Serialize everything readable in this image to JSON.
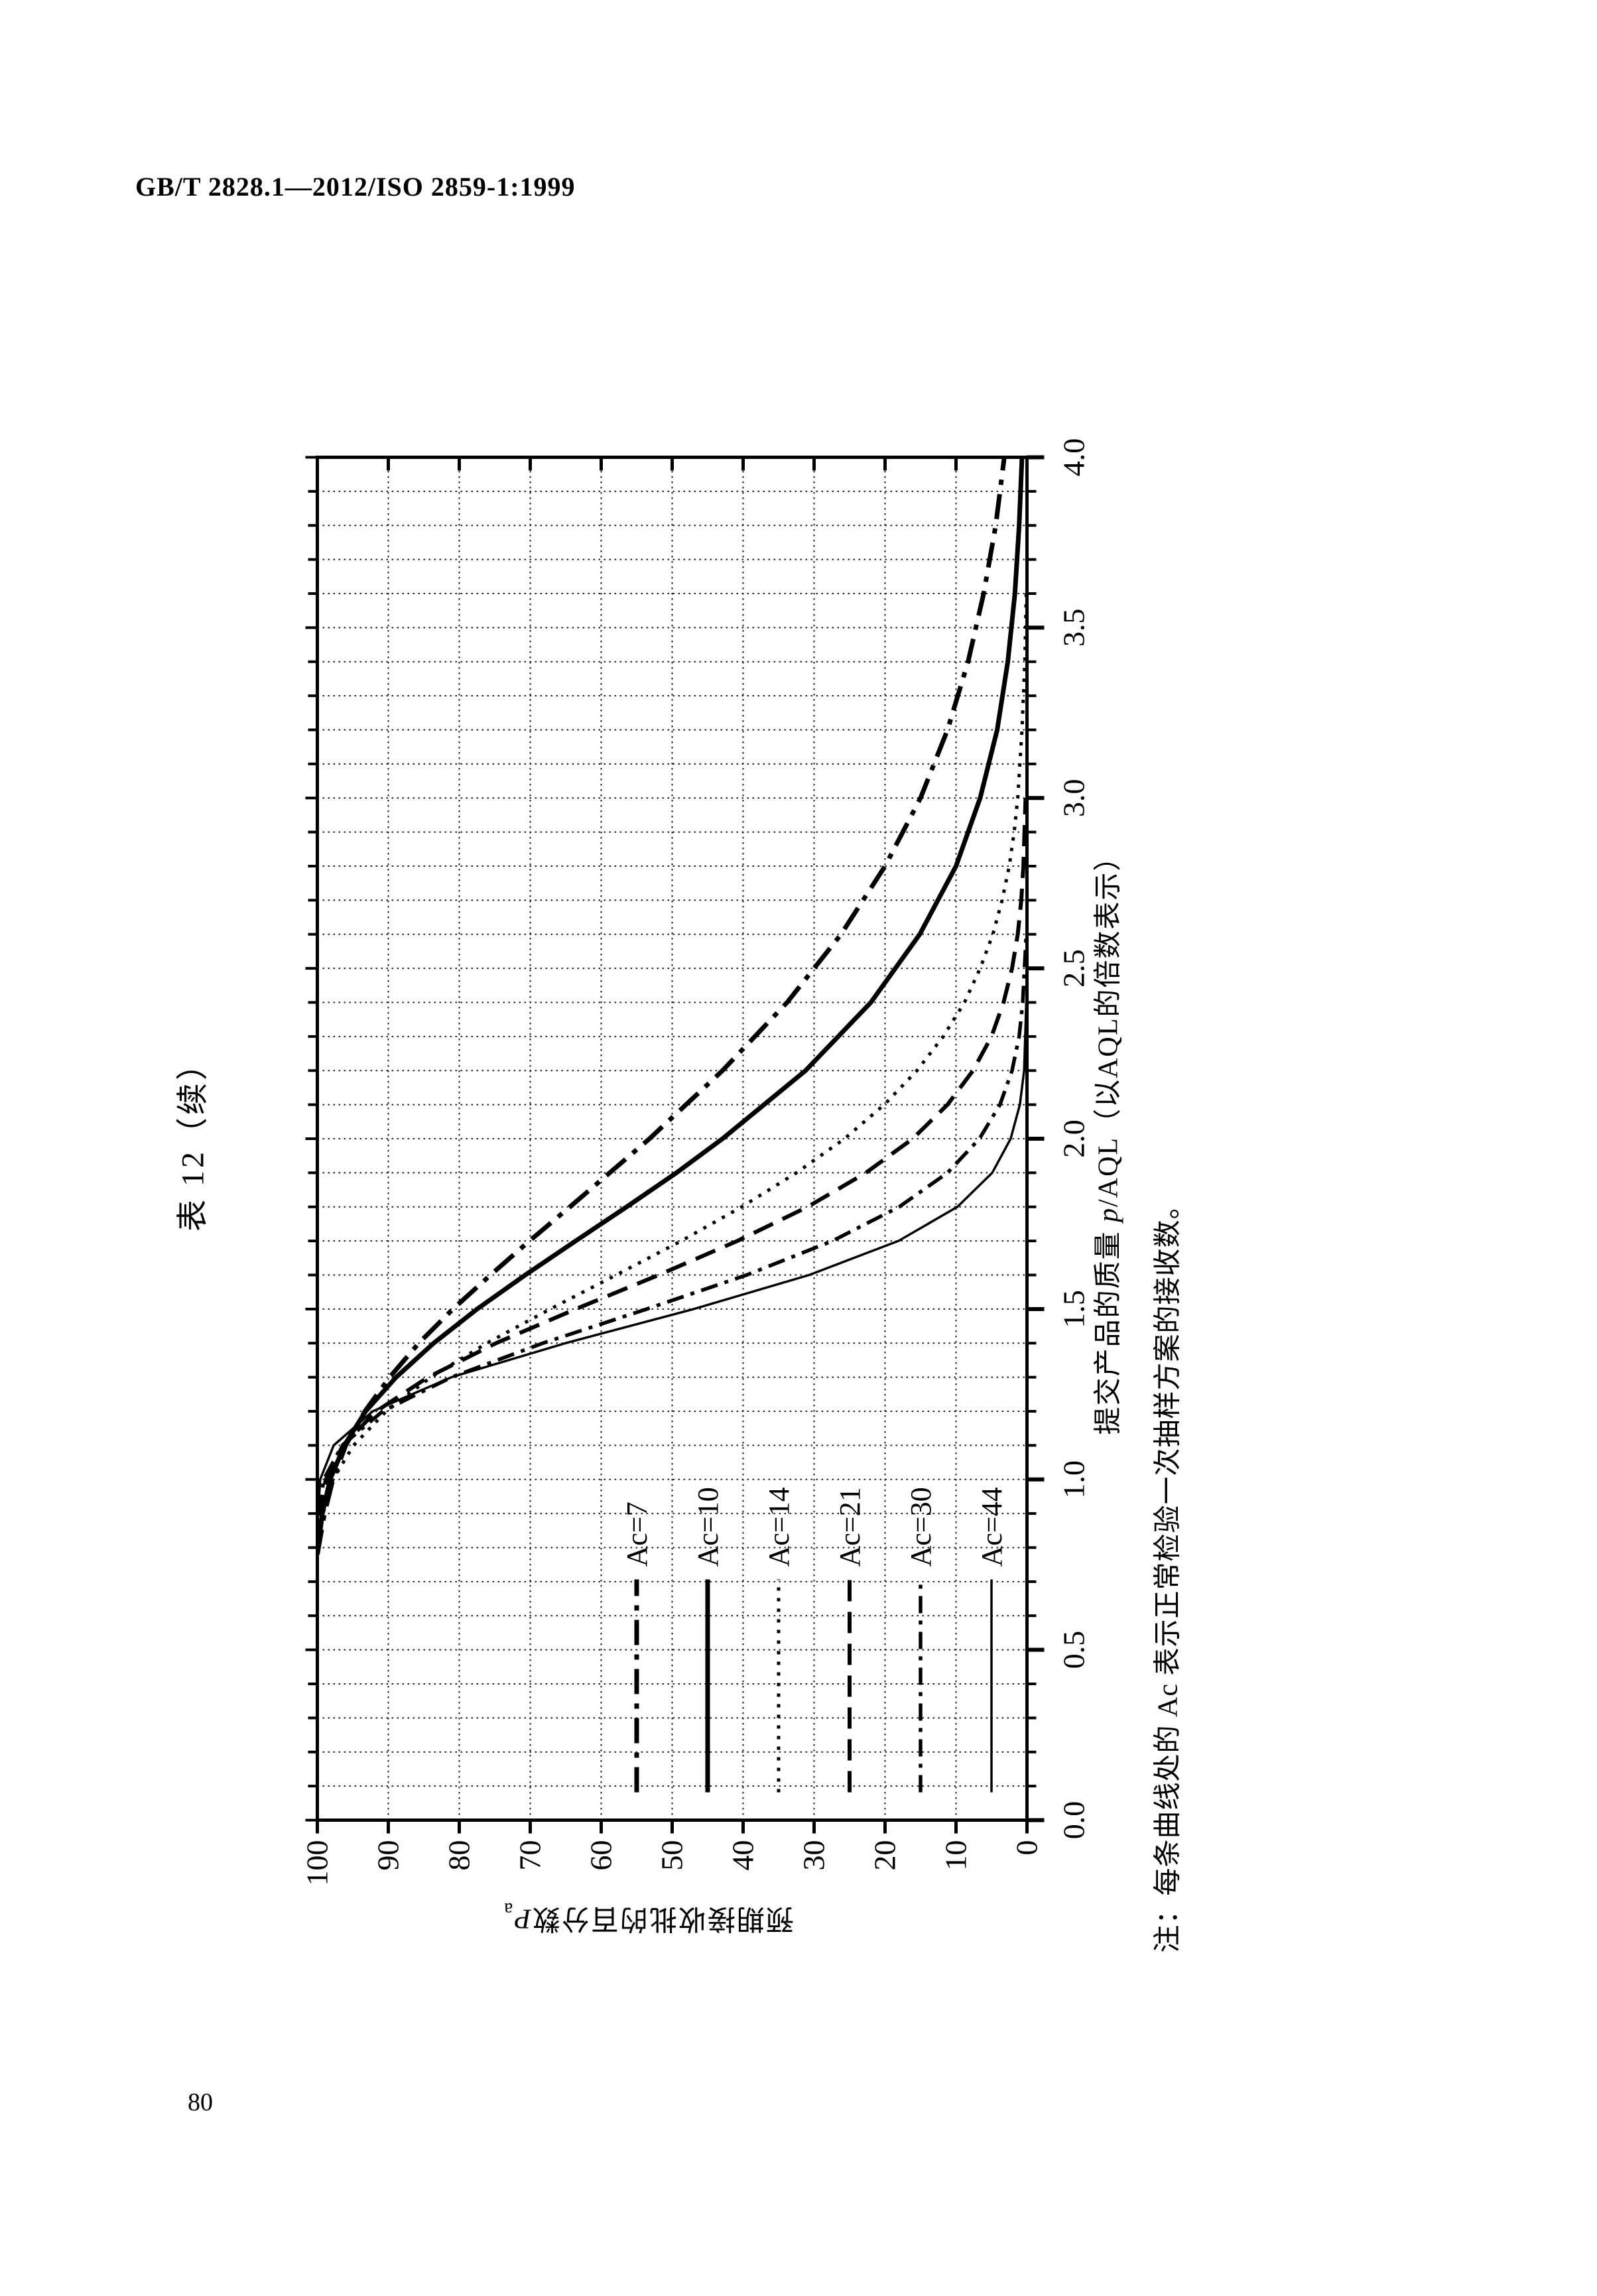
{
  "page": {
    "header": "GB/T 2828.1—2012/ISO 2859-1:1999",
    "page_number": "80"
  },
  "chart_data": {
    "type": "line",
    "title": "表 12（续）",
    "xlabel_parts": {
      "prefix": "提交产品的质量 ",
      "italic": "p",
      "suffix": "/AQL（以AQL的倍数表示）"
    },
    "ylabel_parts": {
      "prefix": "预期接收批的百分数",
      "italic": "P",
      "subscript": "a"
    },
    "xlim": [
      0,
      4
    ],
    "ylim": [
      0,
      100
    ],
    "x_ticks": [
      "0.0",
      "0.5",
      "1.0",
      "1.5",
      "2.0",
      "2.5",
      "3.0",
      "3.5",
      "4.0"
    ],
    "y_ticks": [
      "100",
      "90",
      "80",
      "70",
      "60",
      "50",
      "40",
      "30",
      "20",
      "10",
      "0"
    ],
    "grid": {
      "x_step": 0.1,
      "y_step": 10,
      "style": "dotted",
      "on": true
    },
    "legend_position": "inside-lower-left",
    "orientation": "page-rotated-90deg-ccw",
    "note": "注：每条曲线处的 Ac 表示正常检验一次抽样方案的接收数。",
    "series": [
      {
        "name": "Ac=7",
        "line_style": "dash-dot-bold",
        "points": [
          [
            0.78,
            100
          ],
          [
            0.9,
            99.0
          ],
          [
            1.0,
            97.8
          ],
          [
            1.1,
            96.0
          ],
          [
            1.2,
            93.3
          ],
          [
            1.3,
            89.8
          ],
          [
            1.4,
            85.7
          ],
          [
            1.5,
            80.9
          ],
          [
            1.6,
            75.6
          ],
          [
            1.7,
            70.1
          ],
          [
            1.8,
            64.4
          ],
          [
            1.9,
            58.8
          ],
          [
            2.0,
            53.2
          ],
          [
            2.2,
            42.9
          ],
          [
            2.4,
            33.8
          ],
          [
            2.6,
            26.2
          ],
          [
            2.8,
            20.0
          ],
          [
            3.0,
            15.0
          ],
          [
            3.2,
            11.2
          ],
          [
            3.4,
            8.3
          ],
          [
            3.6,
            6.1
          ],
          [
            3.8,
            4.4
          ],
          [
            4.0,
            3.2
          ]
        ]
      },
      {
        "name": "Ac=10",
        "line_style": "solid-bold",
        "points": [
          [
            0.78,
            100
          ],
          [
            0.9,
            99.3
          ],
          [
            1.0,
            98.2
          ],
          [
            1.1,
            96.2
          ],
          [
            1.2,
            93.2
          ],
          [
            1.3,
            88.9
          ],
          [
            1.4,
            83.6
          ],
          [
            1.5,
            77.5
          ],
          [
            1.6,
            70.7
          ],
          [
            1.7,
            63.6
          ],
          [
            1.8,
            56.4
          ],
          [
            1.9,
            49.4
          ],
          [
            2.0,
            42.9
          ],
          [
            2.2,
            31.2
          ],
          [
            2.4,
            22.0
          ],
          [
            2.6,
            15.1
          ],
          [
            2.8,
            10.0
          ],
          [
            3.0,
            6.6
          ],
          [
            3.2,
            4.2
          ],
          [
            3.4,
            2.7
          ],
          [
            3.6,
            1.7
          ],
          [
            3.8,
            1.1
          ],
          [
            4.0,
            0.7
          ]
        ]
      },
      {
        "name": "Ac=14",
        "line_style": "dotted",
        "points": [
          [
            0.78,
            100
          ],
          [
            0.9,
            99.2
          ],
          [
            1.0,
            97.8
          ],
          [
            1.1,
            94.9
          ],
          [
            1.2,
            90.3
          ],
          [
            1.3,
            84.0
          ],
          [
            1.4,
            76.1
          ],
          [
            1.5,
            67.2
          ],
          [
            1.6,
            57.9
          ],
          [
            1.7,
            48.7
          ],
          [
            1.8,
            40.2
          ],
          [
            1.9,
            32.5
          ],
          [
            2.0,
            25.7
          ],
          [
            2.1,
            20.1
          ],
          [
            2.2,
            15.5
          ],
          [
            2.3,
            11.8
          ],
          [
            2.4,
            8.8
          ],
          [
            2.5,
            6.6
          ],
          [
            2.6,
            4.8
          ],
          [
            2.7,
            3.5
          ],
          [
            2.8,
            2.5
          ],
          [
            2.9,
            1.8
          ],
          [
            3.0,
            1.3
          ],
          [
            3.2,
            0.7
          ],
          [
            3.4,
            0.3
          ],
          [
            3.6,
            0.1
          ]
        ]
      },
      {
        "name": "Ac=21",
        "line_style": "dashed",
        "points": [
          [
            0.8,
            100
          ],
          [
            0.9,
            99.7
          ],
          [
            1.0,
            98.8
          ],
          [
            1.1,
            96.4
          ],
          [
            1.2,
            91.7
          ],
          [
            1.3,
            84.4
          ],
          [
            1.4,
            74.8
          ],
          [
            1.5,
            63.6
          ],
          [
            1.6,
            51.9
          ],
          [
            1.7,
            40.8
          ],
          [
            1.8,
            30.9
          ],
          [
            1.9,
            22.7
          ],
          [
            2.0,
            16.1
          ],
          [
            2.1,
            11.2
          ],
          [
            2.2,
            7.6
          ],
          [
            2.3,
            5.0
          ],
          [
            2.4,
            3.3
          ],
          [
            2.5,
            2.1
          ],
          [
            2.6,
            1.3
          ],
          [
            2.7,
            0.8
          ],
          [
            2.8,
            0.5
          ],
          [
            3.0,
            0.2
          ]
        ]
      },
      {
        "name": "Ac=30",
        "line_style": "dash-dot",
        "points": [
          [
            0.8,
            100
          ],
          [
            0.9,
            99.8
          ],
          [
            1.0,
            99.1
          ],
          [
            1.1,
            96.5
          ],
          [
            1.2,
            90.8
          ],
          [
            1.3,
            81.1
          ],
          [
            1.4,
            68.2
          ],
          [
            1.5,
            53.6
          ],
          [
            1.6,
            39.5
          ],
          [
            1.7,
            27.4
          ],
          [
            1.8,
            18.0
          ],
          [
            1.9,
            11.2
          ],
          [
            2.0,
            6.7
          ],
          [
            2.1,
            3.8
          ],
          [
            2.2,
            2.1
          ],
          [
            2.3,
            1.1
          ],
          [
            2.4,
            0.6
          ],
          [
            2.6,
            0.1
          ]
        ]
      },
      {
        "name": "Ac=44",
        "line_style": "solid-thin",
        "points": [
          [
            0.8,
            100
          ],
          [
            0.9,
            99.9
          ],
          [
            1.0,
            99.6
          ],
          [
            1.1,
            97.7
          ],
          [
            1.2,
            92.2
          ],
          [
            1.3,
            81.1
          ],
          [
            1.4,
            65.0
          ],
          [
            1.5,
            47.0
          ],
          [
            1.6,
            30.7
          ],
          [
            1.7,
            18.1
          ],
          [
            1.8,
            9.8
          ],
          [
            1.9,
            4.9
          ],
          [
            2.0,
            2.3
          ],
          [
            2.1,
            1.0
          ],
          [
            2.2,
            0.4
          ],
          [
            2.4,
            0.1
          ]
        ]
      }
    ]
  }
}
